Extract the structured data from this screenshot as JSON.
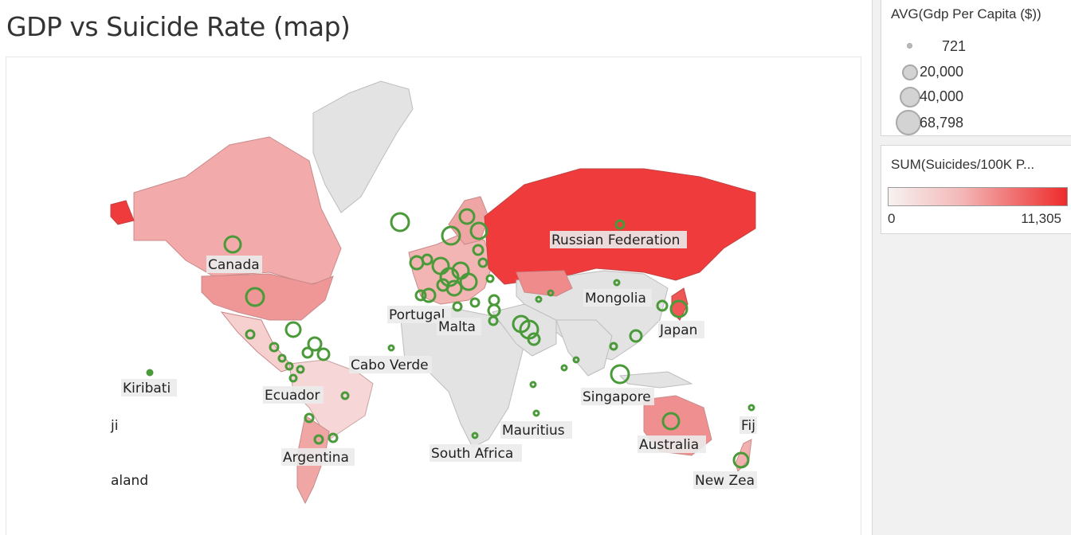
{
  "title": "GDP vs Suicide Rate (map)",
  "size_legend": {
    "title": "AVG(Gdp Per Capita ($))",
    "items": [
      {
        "label": "721"
      },
      {
        "label": "20,000"
      },
      {
        "label": "40,000"
      },
      {
        "label": "68,798"
      }
    ]
  },
  "color_legend": {
    "title": "SUM(Suicides/100K P...",
    "min_label": "0",
    "max_label": "11,305",
    "low_color": "#f6f2f0",
    "high_color": "#ee2b2b"
  },
  "colors": {
    "marker_stroke": "#4a9a3a",
    "no_data_land": "#e3e3e3",
    "high_fill": "#ef3b3b",
    "mid_fill": "#f0a0a0",
    "low_fill": "#f6cfcf"
  },
  "country_labels": {
    "canada": "Canada",
    "russia": "Russian Federation",
    "mongolia": "Mongolia",
    "japan": "Japan",
    "portugal": "Portugal",
    "malta": "Malta",
    "cabo_verde": "Cabo Verde",
    "kiribati": "Kiribati",
    "ecuador": "Ecuador",
    "singapore": "Singapore",
    "fiji_left": "ji",
    "fiji_right": "Fij",
    "mauritius": "Mauritius",
    "south_africa": "South Africa",
    "argentina": "Argentina",
    "australia": "Australia",
    "nz_left": "aland",
    "nz_right": "New Zea"
  }
}
